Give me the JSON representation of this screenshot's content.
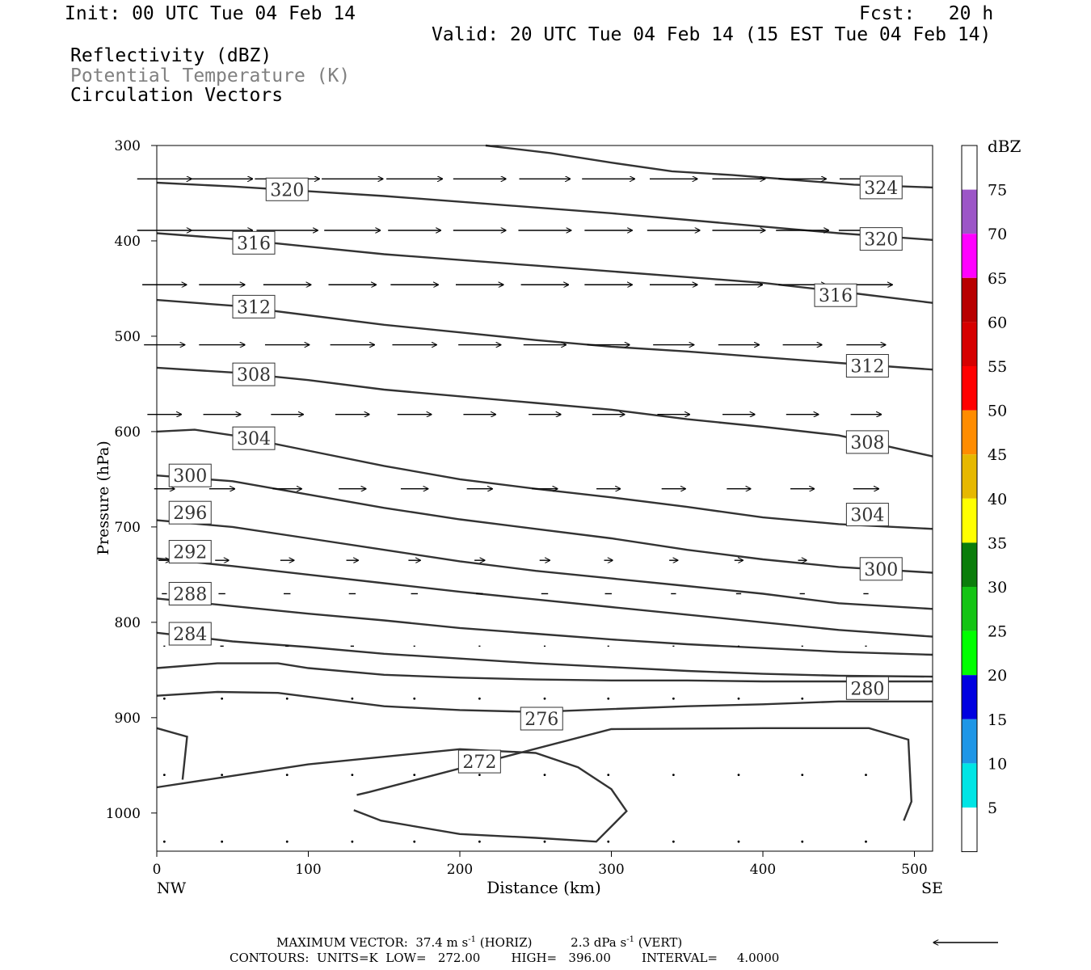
{
  "header": {
    "init": "Init: 00 UTC Tue 04 Feb 14",
    "fcst": "Fcst:   20 h",
    "valid": "Valid: 20 UTC Tue 04 Feb 14 (15 EST Tue 04 Feb 14)",
    "field1": "Reflectivity (dBZ)",
    "field2": "Potential Temperature (K)",
    "field3": "Circulation Vectors"
  },
  "colors": {
    "field2": "#808080",
    "contour": "#333333"
  },
  "chart_data": {
    "type": "line",
    "xlabel": "Distance (km)",
    "ylabel": "Pressure (hPa)",
    "xlim": [
      0,
      512
    ],
    "ylim": [
      300,
      1040
    ],
    "x_ticks": [
      "0",
      "100",
      "200",
      "300",
      "400",
      "500"
    ],
    "y_ticks": [
      "300",
      "400",
      "500",
      "600",
      "700",
      "800",
      "900",
      "1000"
    ],
    "x_end_labels": {
      "left": "NW",
      "right": "SE"
    },
    "series": [
      {
        "name": "324",
        "x": [
          217,
          260,
          300,
          340,
          380,
          420,
          460,
          512
        ],
        "y": [
          300,
          308,
          318,
          327,
          331,
          336,
          341,
          344
        ]
      },
      {
        "name": "320",
        "x": [
          0,
          50,
          100,
          150,
          200,
          250,
          300,
          350,
          400,
          450,
          512
        ],
        "y": [
          339,
          343,
          348,
          353,
          359,
          365,
          371,
          378,
          385,
          392,
          399
        ]
      },
      {
        "name": "316",
        "x": [
          0,
          50,
          100,
          150,
          200,
          250,
          300,
          350,
          400,
          450,
          512
        ],
        "y": [
          392,
          398,
          406,
          414,
          420,
          426,
          432,
          438,
          444,
          453,
          465
        ]
      },
      {
        "name": "312",
        "x": [
          0,
          50,
          100,
          150,
          200,
          250,
          300,
          350,
          400,
          450,
          512
        ],
        "y": [
          462,
          468,
          478,
          488,
          496,
          504,
          511,
          516,
          522,
          528,
          535
        ]
      },
      {
        "name": "308",
        "x": [
          0,
          50,
          100,
          150,
          200,
          250,
          300,
          350,
          400,
          450,
          512
        ],
        "y": [
          533,
          538,
          546,
          556,
          563,
          570,
          577,
          587,
          595,
          604,
          626
        ]
      },
      {
        "name": "304",
        "x": [
          0,
          25,
          50,
          100,
          150,
          200,
          250,
          300,
          350,
          400,
          450,
          512
        ],
        "y": [
          600,
          598,
          604,
          620,
          636,
          650,
          660,
          669,
          679,
          690,
          697,
          702
        ]
      },
      {
        "name": "300",
        "x": [
          0,
          50,
          100,
          150,
          200,
          250,
          300,
          350,
          400,
          450,
          512
        ],
        "y": [
          646,
          652,
          666,
          680,
          692,
          702,
          712,
          724,
          734,
          742,
          748
        ]
      },
      {
        "name": "296",
        "x": [
          0,
          50,
          100,
          150,
          200,
          250,
          300,
          350,
          400,
          450,
          512
        ],
        "y": [
          693,
          700,
          712,
          724,
          736,
          746,
          754,
          762,
          770,
          780,
          786
        ]
      },
      {
        "name": "292",
        "x": [
          0,
          50,
          100,
          150,
          200,
          250,
          300,
          350,
          400,
          450,
          512
        ],
        "y": [
          733,
          741,
          750,
          759,
          768,
          776,
          784,
          792,
          800,
          808,
          815
        ]
      },
      {
        "name": "288",
        "x": [
          0,
          50,
          100,
          150,
          200,
          250,
          300,
          350,
          400,
          450,
          512
        ],
        "y": [
          775,
          783,
          791,
          798,
          806,
          812,
          818,
          823,
          827,
          831,
          834
        ]
      },
      {
        "name": "284",
        "x": [
          0,
          50,
          100,
          150,
          200,
          250,
          300,
          350,
          400,
          450,
          512
        ],
        "y": [
          811,
          820,
          826,
          833,
          838,
          843,
          847,
          851,
          854,
          856,
          857
        ]
      },
      {
        "name": "280",
        "x": [
          0,
          40,
          80,
          100,
          150,
          200,
          250,
          300,
          350,
          400,
          450,
          512
        ],
        "y": [
          848,
          843,
          843,
          848,
          855,
          858,
          860,
          861,
          861,
          862,
          862,
          862
        ]
      },
      {
        "name": "276",
        "x": [
          0,
          40,
          80,
          100,
          150,
          200,
          250,
          300,
          350,
          400,
          450,
          512
        ],
        "y": [
          877,
          873,
          874,
          878,
          888,
          892,
          894,
          891,
          888,
          886,
          883,
          883
        ]
      },
      {
        "name": "272",
        "x": [
          130,
          148,
          200,
          250,
          290,
          310,
          300,
          278,
          250,
          200,
          150,
          100,
          50,
          0
        ],
        "y": [
          997,
          1008,
          1022,
          1026,
          1030,
          998,
          975,
          952,
          937,
          933,
          941,
          949,
          961,
          973
        ]
      },
      {
        "name": "272",
        "x": [
          0,
          20,
          17
        ],
        "y": [
          911,
          920,
          965
        ]
      },
      {
        "name": "272",
        "x": [
          132,
          140,
          300,
          400,
          470,
          496,
          498,
          493
        ],
        "y": [
          981,
          978,
          912,
          911,
          911,
          923,
          988,
          1008
        ]
      }
    ],
    "contour_labels": [
      {
        "text": "324",
        "x": 478,
        "y": 344
      },
      {
        "text": "320",
        "x": 86,
        "y": 346
      },
      {
        "text": "320",
        "x": 478,
        "y": 398
      },
      {
        "text": "316",
        "x": 64,
        "y": 402
      },
      {
        "text": "316",
        "x": 448,
        "y": 457
      },
      {
        "text": "312",
        "x": 64,
        "y": 469
      },
      {
        "text": "312",
        "x": 469,
        "y": 531
      },
      {
        "text": "308",
        "x": 64,
        "y": 540
      },
      {
        "text": "308",
        "x": 469,
        "y": 611
      },
      {
        "text": "304",
        "x": 64,
        "y": 607
      },
      {
        "text": "304",
        "x": 469,
        "y": 687
      },
      {
        "text": "300",
        "x": 22,
        "y": 646
      },
      {
        "text": "300",
        "x": 478,
        "y": 744
      },
      {
        "text": "296",
        "x": 22,
        "y": 685
      },
      {
        "text": "292",
        "x": 22,
        "y": 726
      },
      {
        "text": "288",
        "x": 22,
        "y": 770
      },
      {
        "text": "284",
        "x": 22,
        "y": 812
      },
      {
        "text": "280",
        "x": 469,
        "y": 869
      },
      {
        "text": "276",
        "x": 254,
        "y": 901
      },
      {
        "text": "272",
        "x": 213,
        "y": 946
      }
    ],
    "vector_rows": [
      {
        "p": 335,
        "u": [
          32,
          36,
          38,
          36,
          33,
          31,
          30,
          31,
          28,
          31,
          28,
          31
        ]
      },
      {
        "p": 389,
        "u": [
          32,
          36,
          36,
          33,
          31,
          31,
          31,
          28,
          31,
          31,
          31,
          32
        ]
      },
      {
        "p": 446,
        "u": [
          26,
          27,
          28,
          28,
          28,
          28,
          28,
          28,
          28,
          28,
          28,
          31
        ]
      },
      {
        "p": 509,
        "u": [
          24,
          27,
          26,
          26,
          26,
          25,
          25,
          25,
          24,
          24,
          23,
          23
        ]
      },
      {
        "p": 582,
        "u": [
          20,
          22,
          19,
          20,
          20,
          19,
          19,
          19,
          19,
          19,
          19,
          18
        ]
      },
      {
        "p": 660,
        "u": [
          12,
          15,
          17,
          16,
          16,
          15,
          15,
          14,
          14,
          14,
          14,
          15
        ]
      },
      {
        "p": 735,
        "u": [
          7,
          8,
          8,
          7,
          7,
          6,
          6,
          5,
          5,
          5,
          5,
          5
        ]
      },
      {
        "p": 770,
        "u": [
          3,
          4,
          4,
          4,
          4,
          4,
          4,
          4,
          3,
          3,
          3,
          3
        ]
      },
      {
        "p": 825,
        "u": [
          1,
          2,
          2,
          2,
          1,
          1,
          1,
          1,
          1,
          1,
          1,
          1
        ]
      },
      {
        "p": 880,
        "u": [
          0,
          0,
          0,
          0,
          0,
          0,
          0,
          0,
          0,
          0,
          0,
          0
        ]
      },
      {
        "p": 960,
        "u": [
          0,
          0,
          0,
          0,
          0,
          0,
          0,
          0,
          0,
          0,
          0,
          0
        ]
      },
      {
        "p": 1030,
        "u": [
          0,
          0,
          0,
          0,
          0,
          0,
          0,
          0,
          0,
          0,
          0,
          0
        ]
      }
    ],
    "vector_x": [
      5,
      43,
      86,
      129,
      170,
      213,
      256,
      298,
      341,
      384,
      426,
      468
    ]
  },
  "colorbar": {
    "title": "dBZ",
    "labels": [
      "75",
      "70",
      "65",
      "60",
      "55",
      "50",
      "45",
      "40",
      "35",
      "30",
      "25",
      "20",
      "15",
      "10",
      "5"
    ],
    "colors": [
      "#ffffff",
      "#9c55c7",
      "#ff00ff",
      "#b80000",
      "#d60000",
      "#ff0000",
      "#ff8c00",
      "#e6b800",
      "#ffff00",
      "#0b7d0b",
      "#14c414",
      "#00ff00",
      "#0000e0",
      "#1e96e6",
      "#00e5e5",
      "#ffffff"
    ]
  },
  "footer": {
    "line1": "MAXIMUM VECTOR:  37.4 m s",
    "line1_sup": "-1",
    "line1_b": " (HORIZ)          2.3 dPa s",
    "line1_sup2": "-1",
    "line1_c": " (VERT)",
    "line2": "CONTOURS:  UNITS=K  LOW=   272.00        HIGH=   396.00        INTERVAL=     4.0000"
  }
}
